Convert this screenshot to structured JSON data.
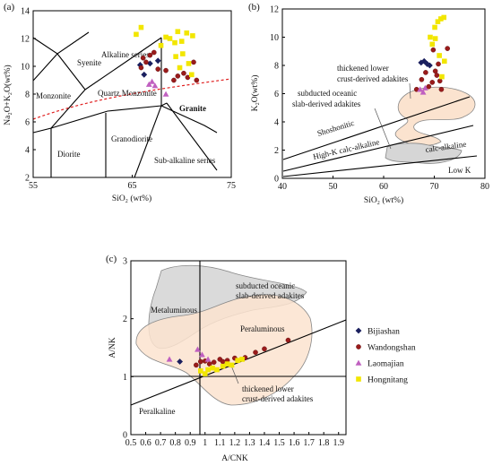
{
  "colors": {
    "Bijiashan": "#1a1f5e",
    "Wandongshan": "#9a1b1b",
    "Laomajian": "#c060c0",
    "Hongnitang": "#f2e600",
    "adakite_lower_crust": "#fbe3cf",
    "adakite_oceanic_slab": "#d6d6d6",
    "dashed_boundary": "#e02020"
  },
  "legend": [
    "Bijiashan",
    "Wandongshan",
    "Laomajian",
    "Hongnitang"
  ],
  "chart_data": [
    {
      "panel": "(a)",
      "type": "scatter",
      "xlabel": "SiO₂ (wt%)",
      "ylabel": "Na₂O+K₂O(wt%)",
      "xlim": [
        55,
        75
      ],
      "ylim": [
        2,
        14
      ],
      "xticks": [
        55,
        65,
        75
      ],
      "yticks": [
        2,
        4,
        6,
        8,
        10,
        12,
        14
      ],
      "fields": [
        "Syenite",
        "Alkaline series",
        "Monzonite",
        "Quartz Monzonite",
        "Granite",
        "Diorite",
        "Granodiorite",
        "Sub-alkaline series"
      ],
      "series": [
        {
          "name": "Bijiashan",
          "points": [
            [
              65.8,
              10.1
            ],
            [
              66.2,
              9.4
            ],
            [
              66.8,
              10.2
            ],
            [
              67.6,
              10.4
            ]
          ]
        },
        {
          "name": "Wandongshan",
          "points": [
            [
              65.9,
              9.9
            ],
            [
              66.1,
              10.6
            ],
            [
              66.4,
              10.3
            ],
            [
              66.8,
              10.8
            ],
            [
              67.2,
              11.0
            ],
            [
              67.6,
              9.8
            ],
            [
              68.4,
              9.7
            ],
            [
              69.2,
              9.0
            ],
            [
              69.6,
              9.3
            ],
            [
              70.2,
              9.5
            ],
            [
              70.6,
              9.2
            ],
            [
              71.2,
              10.3
            ],
            [
              71.5,
              9.0
            ]
          ]
        },
        {
          "name": "Laomajian",
          "points": [
            [
              66.7,
              8.7
            ],
            [
              67.0,
              8.9
            ],
            [
              67.3,
              8.6
            ],
            [
              68.4,
              8.0
            ]
          ]
        },
        {
          "name": "Hongnitang",
          "points": [
            [
              65.4,
              12.3
            ],
            [
              65.9,
              12.8
            ],
            [
              67.9,
              11.5
            ],
            [
              68.4,
              12.1
            ],
            [
              68.8,
              12.0
            ],
            [
              69.3,
              11.7
            ],
            [
              69.6,
              12.5
            ],
            [
              70.0,
              11.8
            ],
            [
              70.5,
              12.4
            ],
            [
              71.1,
              12.2
            ],
            [
              69.4,
              10.7
            ],
            [
              70.1,
              10.9
            ],
            [
              70.7,
              10.2
            ],
            [
              71.0,
              9.4
            ],
            [
              69.8,
              9.9
            ]
          ]
        }
      ]
    },
    {
      "panel": "(b)",
      "type": "scatter",
      "xlabel": "SiO₂ (wt%)",
      "ylabel": "K₂O(wt%)",
      "xlim": [
        40,
        80
      ],
      "ylim": [
        0,
        12
      ],
      "xticks": [
        40,
        50,
        60,
        70,
        80
      ],
      "yticks": [
        0,
        2,
        4,
        6,
        8,
        10,
        12
      ],
      "fields": [
        "Shoshonitic",
        "High-K calc-alkaline",
        "calc-alkaline",
        "Low K"
      ],
      "annotations": [
        "thickened lower crust-derived adakites",
        "subducted oceanic slab-derived adakites"
      ],
      "series": [
        {
          "name": "Bijiashan",
          "points": [
            [
              67.4,
              8.2
            ],
            [
              68.0,
              8.3
            ],
            [
              68.6,
              8.1
            ],
            [
              69.1,
              8.0
            ]
          ]
        },
        {
          "name": "Wandongshan",
          "points": [
            [
              66.5,
              6.3
            ],
            [
              67.5,
              7.0
            ],
            [
              68.3,
              7.5
            ],
            [
              68.9,
              6.5
            ],
            [
              69.6,
              6.8
            ],
            [
              70.2,
              7.6
            ],
            [
              70.8,
              8.1
            ],
            [
              71.4,
              6.3
            ],
            [
              72.6,
              9.2
            ],
            [
              69.8,
              9.1
            ],
            [
              70.5,
              7.3
            ],
            [
              71.1,
              6.9
            ]
          ]
        },
        {
          "name": "Laomajian",
          "points": [
            [
              67.2,
              6.3
            ],
            [
              67.8,
              6.1
            ],
            [
              68.2,
              6.4
            ]
          ]
        },
        {
          "name": "Hongnitang",
          "points": [
            [
              69.2,
              10.0
            ],
            [
              69.6,
              9.5
            ],
            [
              70.1,
              10.7
            ],
            [
              70.7,
              11.1
            ],
            [
              71.3,
              11.3
            ],
            [
              71.9,
              11.4
            ],
            [
              70.2,
              9.9
            ],
            [
              71.0,
              8.7
            ],
            [
              71.5,
              7.2
            ],
            [
              72.0,
              8.3
            ]
          ]
        }
      ]
    },
    {
      "panel": "(c)",
      "type": "scatter",
      "xlabel": "A/CNK",
      "ylabel": "A/NK",
      "xlim": [
        0.5,
        2.0
      ],
      "ylim": [
        0,
        3
      ],
      "xticks": [
        0.5,
        0.6,
        0.7,
        0.8,
        0.9,
        1,
        1.1,
        1.2,
        1.3,
        1.4,
        1.5,
        1.6,
        1.7,
        1.8,
        1.9
      ],
      "yticks": [
        0,
        1,
        2,
        3
      ],
      "fields": [
        "Metaluminous",
        "Peraluminous",
        "Peralkaline"
      ],
      "annotations": [
        "subducted oceanic slab-derived adakites",
        "thickened lower crust-derived adakites"
      ],
      "series": [
        {
          "name": "Bijiashan",
          "points": [
            [
              0.83,
              1.26
            ]
          ]
        },
        {
          "name": "Wandongshan",
          "points": [
            [
              0.94,
              1.2
            ],
            [
              0.97,
              1.26
            ],
            [
              1.0,
              1.27
            ],
            [
              1.03,
              1.22
            ],
            [
              1.06,
              1.25
            ],
            [
              1.1,
              1.3
            ],
            [
              1.12,
              1.26
            ],
            [
              1.15,
              1.28
            ],
            [
              1.2,
              1.32
            ],
            [
              1.27,
              1.33
            ],
            [
              1.34,
              1.42
            ],
            [
              1.4,
              1.48
            ],
            [
              1.56,
              1.63
            ]
          ]
        },
        {
          "name": "Laomajian",
          "points": [
            [
              0.76,
              1.3
            ],
            [
              0.95,
              1.47
            ],
            [
              0.98,
              1.38
            ],
            [
              1.02,
              1.3
            ]
          ]
        },
        {
          "name": "Hongnitang",
          "points": [
            [
              0.97,
              1.1
            ],
            [
              1.0,
              1.05
            ],
            [
              1.02,
              1.12
            ],
            [
              1.05,
              1.15
            ],
            [
              1.08,
              1.12
            ],
            [
              1.12,
              1.18
            ],
            [
              1.15,
              1.22
            ],
            [
              1.18,
              1.2
            ],
            [
              1.22,
              1.28
            ],
            [
              1.25,
              1.3
            ]
          ]
        }
      ]
    }
  ]
}
